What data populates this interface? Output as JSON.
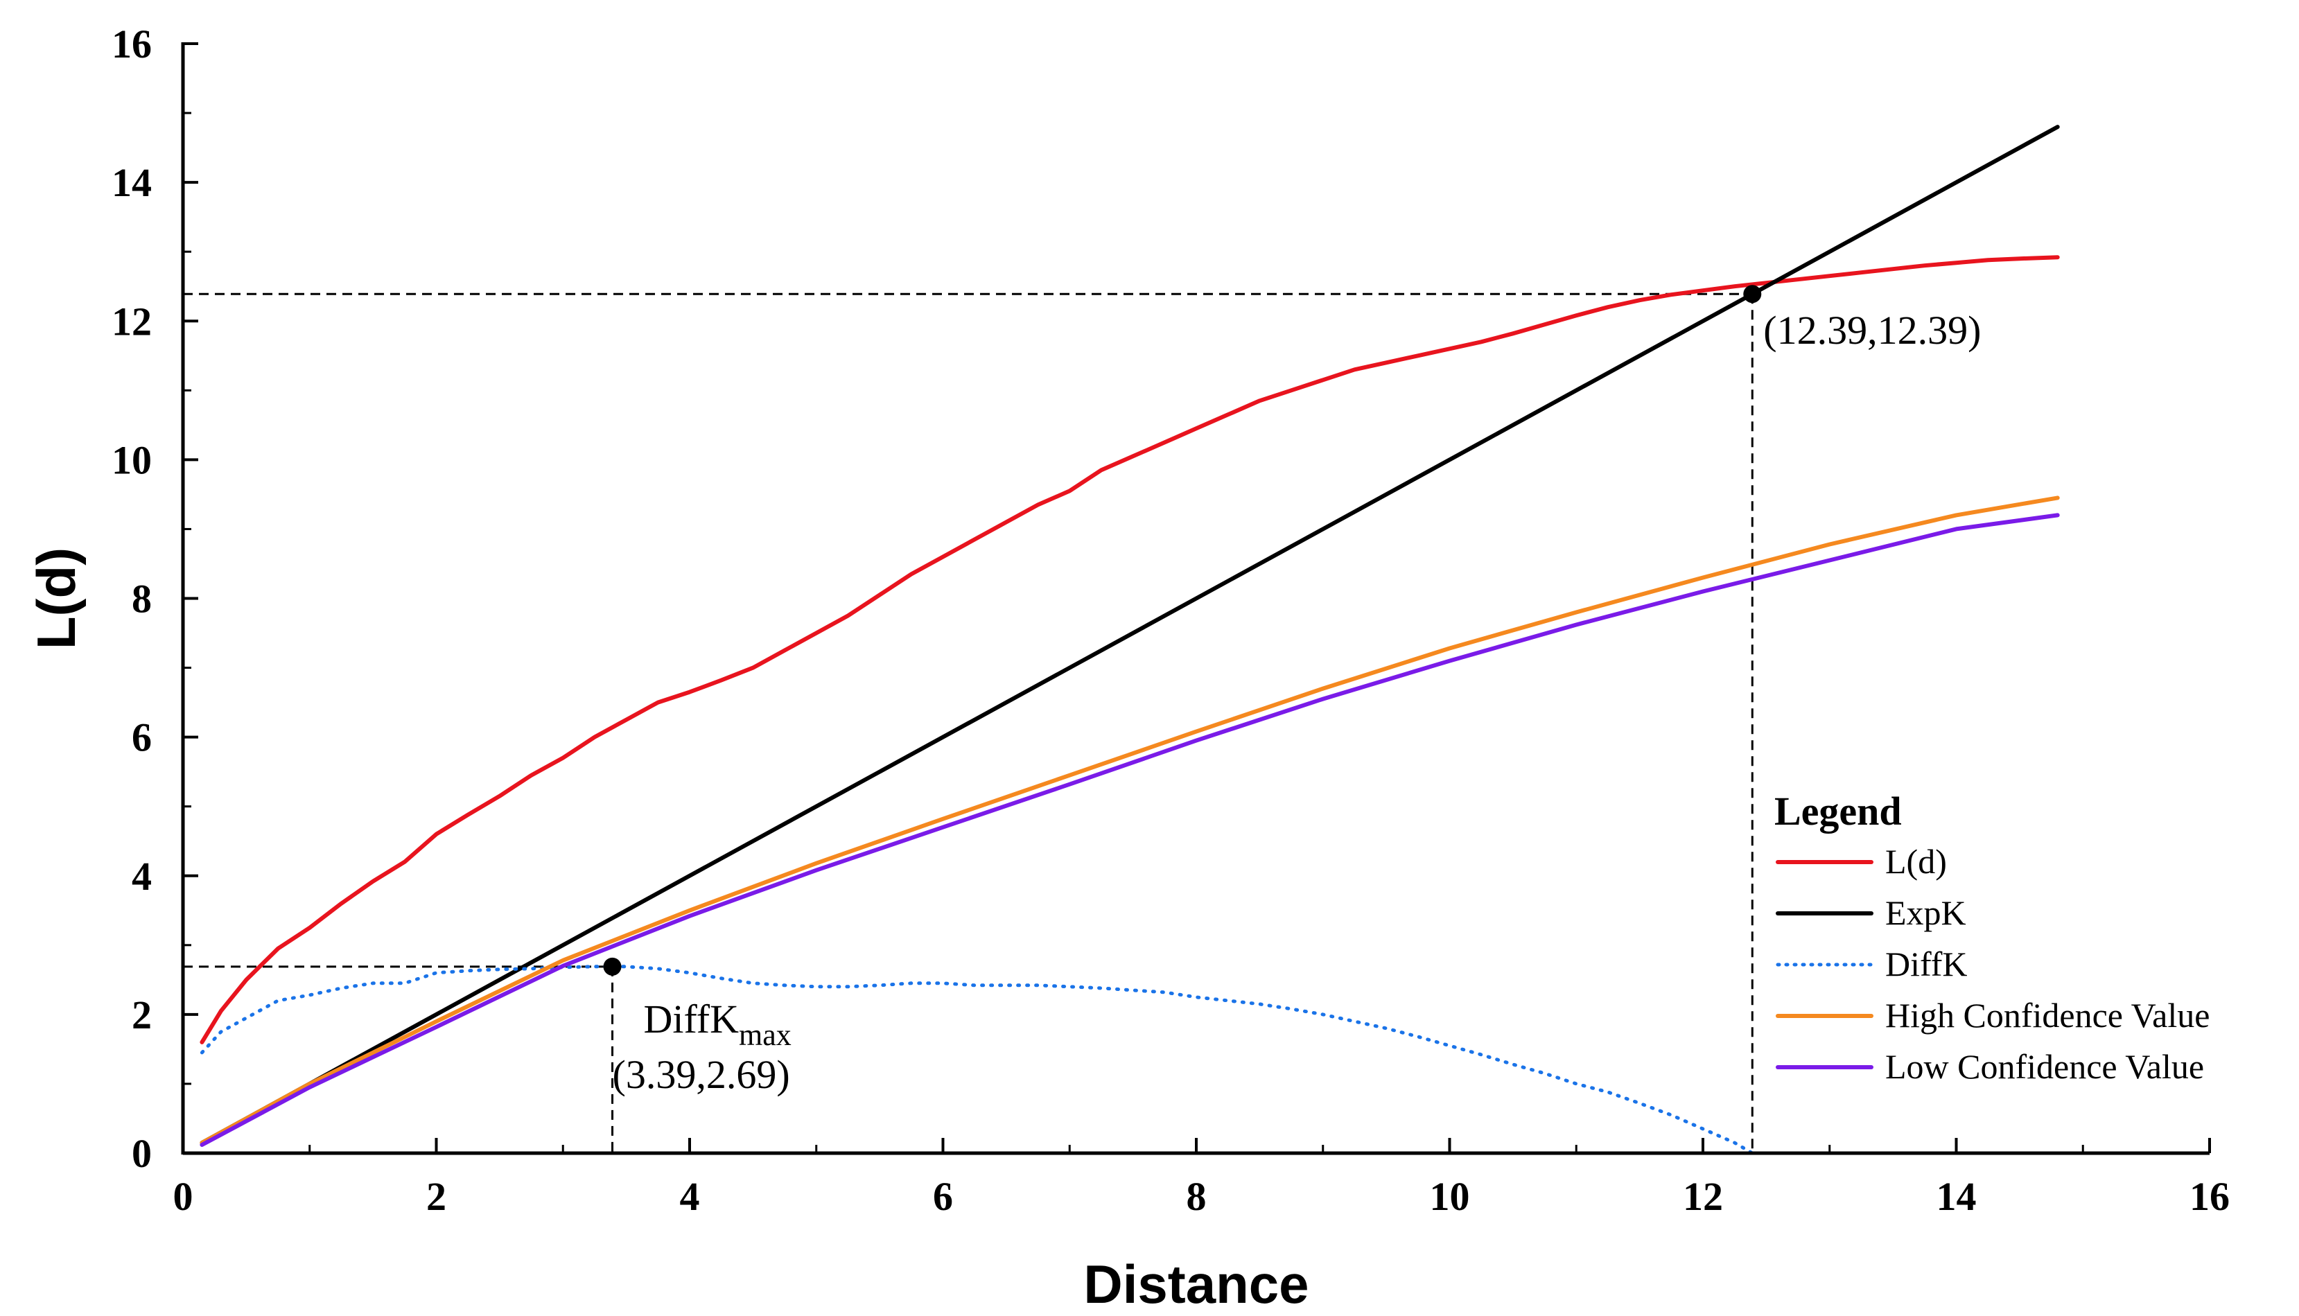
{
  "chart_data": {
    "type": "line",
    "title": "",
    "xlabel": "Distance",
    "ylabel": "L(d)",
    "xlim": [
      0,
      16
    ],
    "ylim": [
      0,
      16
    ],
    "xticks": [
      0,
      2,
      4,
      6,
      8,
      10,
      12,
      14,
      16
    ],
    "yticks": [
      0,
      2,
      4,
      6,
      8,
      10,
      12,
      14,
      16
    ],
    "legend_title": "Legend",
    "legend_position": "bottom-right",
    "series": [
      {
        "name": "L(d)",
        "color": "#e8141e",
        "style": "solid",
        "x": [
          0.15,
          0.3,
          0.5,
          0.75,
          1.0,
          1.25,
          1.5,
          1.75,
          2.0,
          2.25,
          2.5,
          2.75,
          3.0,
          3.25,
          3.5,
          3.75,
          4.0,
          4.25,
          4.5,
          4.75,
          5.0,
          5.25,
          5.5,
          5.75,
          6.0,
          6.25,
          6.5,
          6.75,
          7.0,
          7.25,
          7.5,
          7.75,
          8.0,
          8.25,
          8.5,
          8.75,
          9.0,
          9.25,
          9.5,
          9.75,
          10.0,
          10.25,
          10.5,
          10.75,
          11.0,
          11.25,
          11.5,
          11.75,
          12.0,
          12.25,
          12.5,
          12.75,
          13.0,
          13.25,
          13.5,
          13.75,
          14.0,
          14.25,
          14.5,
          14.8
        ],
        "values": [
          1.6,
          2.05,
          2.5,
          2.95,
          3.25,
          3.6,
          3.92,
          4.2,
          4.6,
          4.88,
          5.15,
          5.45,
          5.7,
          6.0,
          6.25,
          6.5,
          6.65,
          6.82,
          7.0,
          7.25,
          7.5,
          7.75,
          8.05,
          8.35,
          8.6,
          8.85,
          9.1,
          9.35,
          9.55,
          9.85,
          10.05,
          10.25,
          10.45,
          10.65,
          10.85,
          11.0,
          11.15,
          11.3,
          11.4,
          11.5,
          11.6,
          11.7,
          11.82,
          11.95,
          12.08,
          12.2,
          12.3,
          12.38,
          12.44,
          12.5,
          12.55,
          12.6,
          12.65,
          12.7,
          12.75,
          12.8,
          12.84,
          12.88,
          12.9,
          12.92
        ]
      },
      {
        "name": "ExpK",
        "color": "#000000",
        "style": "solid",
        "x": [
          0.15,
          14.8
        ],
        "values": [
          0.15,
          14.8
        ]
      },
      {
        "name": "DiffK",
        "color": "#1a73e8",
        "style": "dotted",
        "x": [
          0.15,
          0.3,
          0.5,
          0.75,
          1.0,
          1.25,
          1.5,
          1.75,
          2.0,
          2.25,
          2.5,
          2.75,
          3.0,
          3.25,
          3.39,
          3.5,
          3.75,
          4.0,
          4.25,
          4.5,
          4.75,
          5.0,
          5.25,
          5.5,
          5.75,
          6.0,
          6.25,
          6.5,
          6.75,
          7.0,
          7.25,
          7.5,
          7.75,
          8.0,
          8.25,
          8.5,
          8.75,
          9.0,
          9.25,
          9.5,
          9.75,
          10.0,
          10.25,
          10.5,
          10.75,
          11.0,
          11.25,
          11.5,
          11.75,
          12.0,
          12.25,
          12.39
        ],
        "values": [
          1.45,
          1.75,
          1.95,
          2.2,
          2.28,
          2.38,
          2.45,
          2.45,
          2.6,
          2.63,
          2.65,
          2.66,
          2.68,
          2.69,
          2.69,
          2.69,
          2.66,
          2.6,
          2.52,
          2.45,
          2.42,
          2.4,
          2.4,
          2.42,
          2.45,
          2.45,
          2.42,
          2.42,
          2.42,
          2.4,
          2.38,
          2.35,
          2.32,
          2.25,
          2.2,
          2.15,
          2.08,
          2.0,
          1.9,
          1.8,
          1.68,
          1.55,
          1.42,
          1.28,
          1.15,
          1.0,
          0.88,
          0.72,
          0.55,
          0.35,
          0.15,
          0.0
        ]
      },
      {
        "name": "High Confidence Value",
        "color": "#f5891f",
        "style": "solid",
        "x": [
          0.15,
          1.0,
          2.0,
          3.0,
          4.0,
          5.0,
          6.0,
          7.0,
          8.0,
          9.0,
          10.0,
          11.0,
          12.0,
          13.0,
          14.0,
          14.8
        ],
        "values": [
          0.15,
          1.0,
          1.9,
          2.78,
          3.5,
          4.18,
          4.82,
          5.45,
          6.08,
          6.7,
          7.28,
          7.8,
          8.3,
          8.78,
          9.2,
          9.45
        ]
      },
      {
        "name": "Low Confidence Value",
        "color": "#7a1be8",
        "style": "solid",
        "x": [
          0.15,
          1.0,
          2.0,
          3.0,
          4.0,
          5.0,
          6.0,
          7.0,
          8.0,
          9.0,
          10.0,
          11.0,
          12.0,
          13.0,
          14.0,
          14.8
        ],
        "values": [
          0.12,
          0.95,
          1.82,
          2.7,
          3.42,
          4.08,
          4.7,
          5.32,
          5.95,
          6.55,
          7.1,
          7.62,
          8.1,
          8.55,
          9.0,
          9.2
        ]
      }
    ],
    "annotations": [
      {
        "point": [
          12.39,
          12.39
        ],
        "label": "(12.39,12.39)"
      },
      {
        "point": [
          3.39,
          2.69
        ],
        "label_main": "DiffK",
        "label_sub": "max",
        "label": "(3.39,2.69)"
      }
    ]
  }
}
